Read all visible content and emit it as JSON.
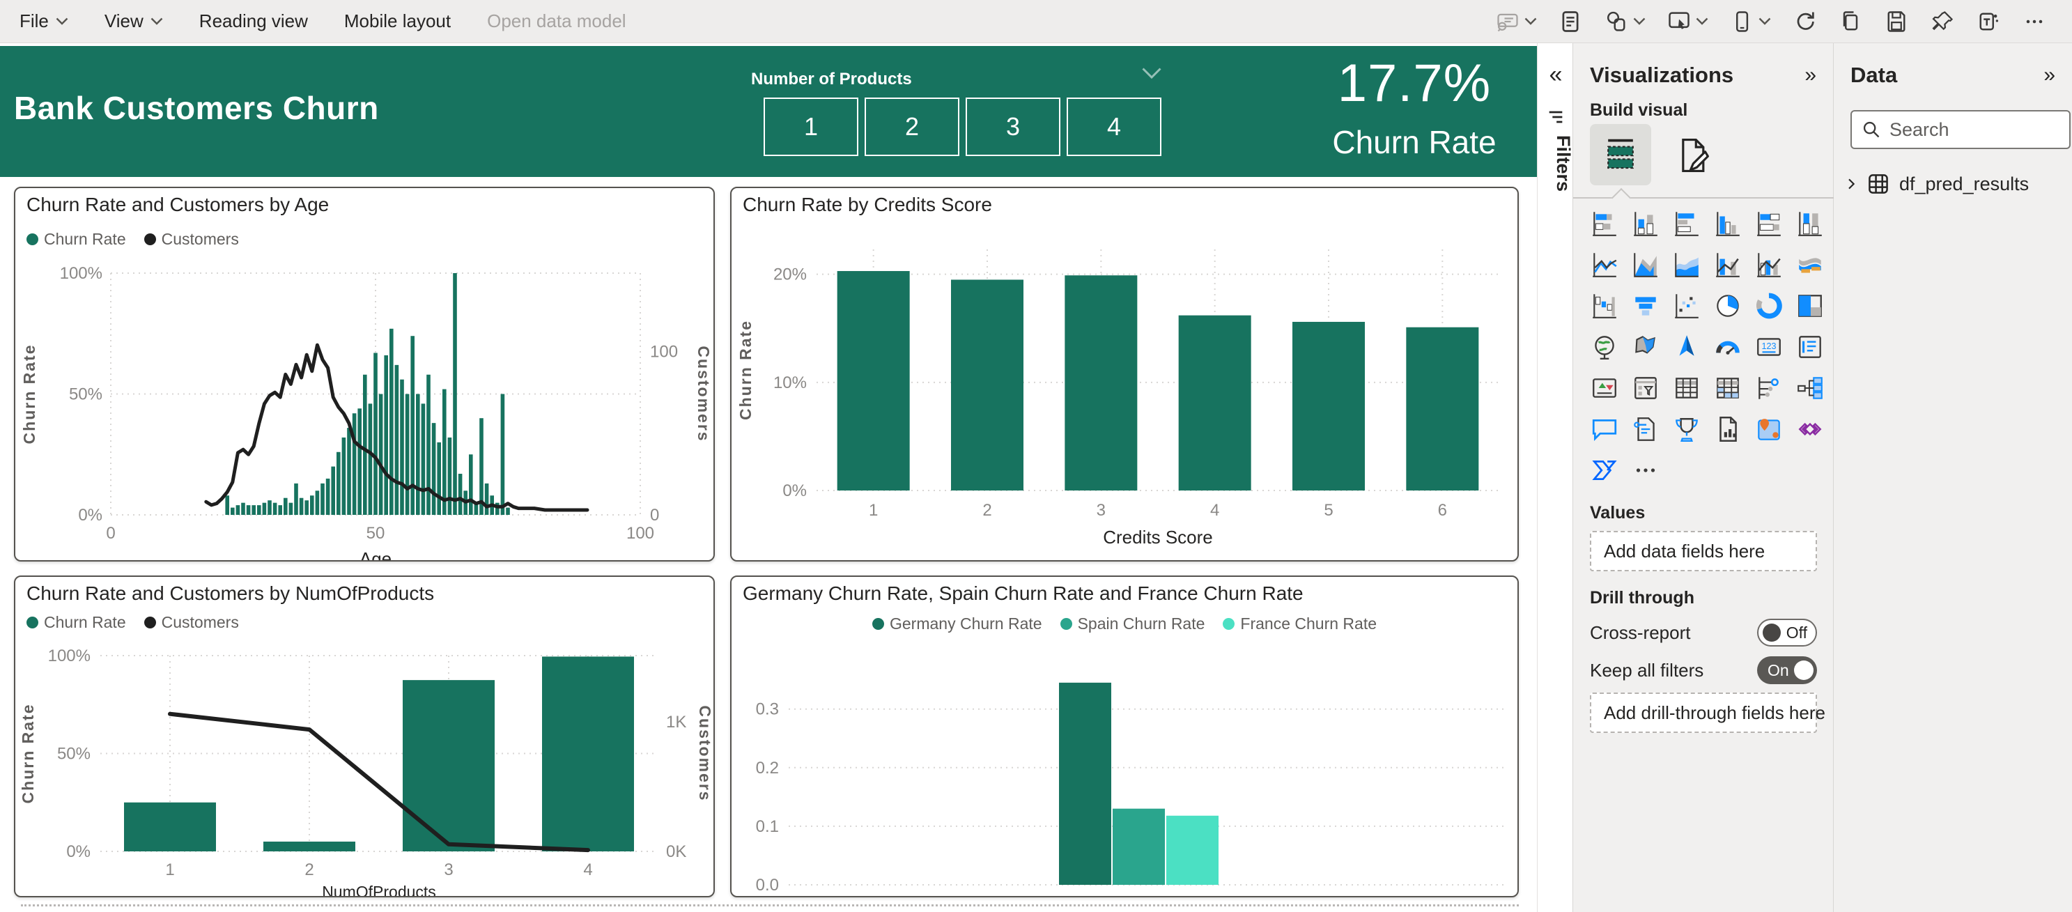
{
  "menubar": {
    "items": [
      {
        "label": "File",
        "chevron": true,
        "disabled": false
      },
      {
        "label": "View",
        "chevron": true,
        "disabled": false
      },
      {
        "label": "Reading view",
        "chevron": false,
        "disabled": false
      },
      {
        "label": "Mobile layout",
        "chevron": false,
        "disabled": false
      },
      {
        "label": "Open data model",
        "chevron": false,
        "disabled": true
      }
    ],
    "toolbar": [
      {
        "name": "explore-data",
        "chevron": true,
        "disabled": true
      },
      {
        "name": "text-box",
        "chevron": false,
        "disabled": false
      },
      {
        "name": "shapes",
        "chevron": true,
        "disabled": false
      },
      {
        "name": "selection",
        "chevron": true,
        "disabled": false
      },
      {
        "name": "phone-layout",
        "chevron": true,
        "disabled": false
      },
      {
        "name": "refresh",
        "chevron": false,
        "disabled": false
      },
      {
        "name": "copy",
        "chevron": false,
        "disabled": false
      },
      {
        "name": "save",
        "chevron": false,
        "disabled": false
      },
      {
        "name": "pin",
        "chevron": false,
        "disabled": false
      },
      {
        "name": "share-teams",
        "chevron": false,
        "disabled": false
      },
      {
        "name": "more-options",
        "chevron": false,
        "disabled": false
      }
    ]
  },
  "banner": {
    "title": "Bank Customers Churn",
    "color": "#17735F",
    "slicer": {
      "label": "Number of Products",
      "options": [
        "1",
        "2",
        "3",
        "4"
      ]
    },
    "kpi": {
      "value": "17.7%",
      "label": "Churn Rate"
    }
  },
  "filters_pane": {
    "collapse_icon": "«",
    "label": "Filters"
  },
  "visualizations_panel": {
    "title": "Visualizations",
    "collapse_icon": "»",
    "build_visual_label": "Build visual",
    "values_label": "Values",
    "values_placeholder": "Add data fields here",
    "drill_through_label": "Drill through",
    "cross_report_label": "Cross-report",
    "cross_report_state": "Off",
    "keep_filters_label": "Keep all filters",
    "keep_filters_state": "On",
    "drill_placeholder": "Add drill-through fields here",
    "more_icon": "...",
    "visual_icons": [
      "stacked-bar",
      "stacked-column",
      "clustered-bar",
      "clustered-column",
      "100-stacked-bar",
      "100-stacked-column",
      "line",
      "area",
      "stacked-area",
      "line-stacked-column",
      "line-clustered-column",
      "ribbon",
      "waterfall",
      "funnel",
      "scatter",
      "pie",
      "donut",
      "treemap",
      "map",
      "filled-map",
      "arcgis-map",
      "gauge",
      "card",
      "multi-row-card",
      "kpi",
      "slicer",
      "table",
      "matrix",
      "key-influencers",
      "decomposition-tree",
      "qna",
      "smart-narrative",
      "metrics",
      "paginated-report",
      "azure-map",
      "power-apps",
      "power-automate",
      "more-visuals"
    ]
  },
  "data_panel": {
    "title": "Data",
    "collapse_icon": "»",
    "search_placeholder": "Search",
    "tables": [
      {
        "name": "df_pred_results"
      }
    ]
  },
  "chart_data": [
    {
      "type": "combo-line-column",
      "title": "Churn Rate and Customers by Age",
      "xlabel": "Age",
      "ylabel_left": "Churn Rate",
      "ylabel_right": "Customers",
      "x_range": [
        0,
        100
      ],
      "x_ticks": [
        0,
        50,
        100
      ],
      "y_left_ticks": [
        "0%",
        "50%",
        "100%"
      ],
      "y_left_range": [
        0,
        100
      ],
      "y_right_ticks": [
        "0",
        "100"
      ],
      "y_right_range": [
        0,
        148
      ],
      "legend": [
        {
          "name": "Churn Rate",
          "color": "#17735F"
        },
        {
          "name": "Customers",
          "color": "#1f1f1f"
        }
      ],
      "bar_x": [
        22,
        23,
        24,
        25,
        26,
        27,
        28,
        29,
        30,
        31,
        32,
        33,
        34,
        35,
        36,
        37,
        38,
        39,
        40,
        41,
        42,
        43,
        44,
        45,
        46,
        47,
        48,
        49,
        50,
        51,
        52,
        53,
        54,
        55,
        56,
        57,
        58,
        59,
        60,
        61,
        62,
        63,
        64,
        65,
        66,
        67,
        68,
        69,
        70,
        71,
        72,
        73,
        74,
        75
      ],
      "bar_churn_pct": [
        8,
        3,
        4,
        5,
        4,
        4,
        4,
        5,
        6,
        5,
        4,
        7,
        5,
        13,
        7,
        6,
        8,
        10,
        13,
        15,
        20,
        26,
        32,
        36,
        42,
        44,
        58,
        46,
        67,
        50,
        66,
        77,
        62,
        56,
        50,
        74,
        50,
        46,
        58,
        38,
        30,
        52,
        32,
        100,
        17,
        10,
        25,
        5,
        40,
        13,
        8,
        5,
        50,
        3
      ],
      "line_x": [
        18,
        19,
        20,
        21,
        22,
        23,
        24,
        25,
        26,
        27,
        28,
        29,
        30,
        31,
        32,
        33,
        34,
        35,
        36,
        37,
        38,
        39,
        40,
        41,
        42,
        43,
        44,
        45,
        46,
        47,
        48,
        49,
        50,
        51,
        52,
        53,
        54,
        55,
        56,
        57,
        58,
        59,
        60,
        61,
        62,
        63,
        64,
        65,
        66,
        67,
        68,
        69,
        70,
        71,
        72,
        73,
        74,
        75,
        76,
        77,
        78,
        80,
        82,
        84,
        86,
        88,
        90
      ],
      "line_customers": [
        8,
        6,
        7,
        10,
        14,
        20,
        38,
        40,
        37,
        42,
        56,
        68,
        73,
        75,
        72,
        86,
        80,
        92,
        84,
        98,
        88,
        104,
        95,
        90,
        72,
        66,
        62,
        56,
        45,
        42,
        40,
        38,
        35,
        30,
        25,
        22,
        20,
        19,
        16,
        18,
        16,
        15,
        16,
        13,
        11,
        9,
        10,
        9,
        10,
        8,
        9,
        7,
        8,
        5,
        6,
        5,
        5,
        7,
        5,
        4,
        4,
        4,
        3,
        3,
        3,
        3,
        3
      ]
    },
    {
      "type": "column",
      "title": "Churn Rate by Credits Score",
      "xlabel": "Credits Score",
      "ylabel": "Churn Rate",
      "categories": [
        "1",
        "2",
        "3",
        "4",
        "5",
        "6"
      ],
      "values_pct": [
        20.3,
        19.5,
        19.9,
        16.2,
        15.6,
        15.1
      ],
      "y_ticks": [
        "0%",
        "10%",
        "20%"
      ],
      "y_tick_values": [
        0,
        10,
        20
      ],
      "y_range": [
        0,
        22.3
      ],
      "color": "#17735F"
    },
    {
      "type": "combo-line-column",
      "title": "Churn Rate and Customers by NumOfProducts",
      "xlabel": "NumOfProducts",
      "ylabel_left": "Churn Rate",
      "ylabel_right": "Customers",
      "categories": [
        "1",
        "2",
        "3",
        "4"
      ],
      "bar_churn_pct": [
        25,
        5,
        87.5,
        99.5
      ],
      "line_customers": [
        1060,
        940,
        55,
        10
      ],
      "y_left_ticks": [
        "0%",
        "50%",
        "100%"
      ],
      "y_left_range": [
        0,
        100
      ],
      "y_right_ticks": [
        "0K",
        "1K"
      ],
      "y_right_tick_values": [
        0,
        1000
      ],
      "y_right_range": [
        0,
        1510
      ],
      "legend": [
        {
          "name": "Churn Rate",
          "color": "#17735F"
        },
        {
          "name": "Customers",
          "color": "#1f1f1f"
        }
      ]
    },
    {
      "type": "clustered-column",
      "title": "Germany Churn Rate, Spain Churn Rate and France Churn Rate",
      "y_ticks": [
        "0.0",
        "0.1",
        "0.2",
        "0.3"
      ],
      "y_tick_values": [
        0.0,
        0.1,
        0.2,
        0.3
      ],
      "y_range": [
        0,
        0.39
      ],
      "series": [
        {
          "name": "Germany Churn Rate",
          "value": 0.345,
          "color": "#17735F"
        },
        {
          "name": "Spain Churn Rate",
          "value": 0.13,
          "color": "#2AA58D"
        },
        {
          "name": "France Churn Rate",
          "value": 0.118,
          "color": "#4BE0C3"
        }
      ]
    }
  ]
}
